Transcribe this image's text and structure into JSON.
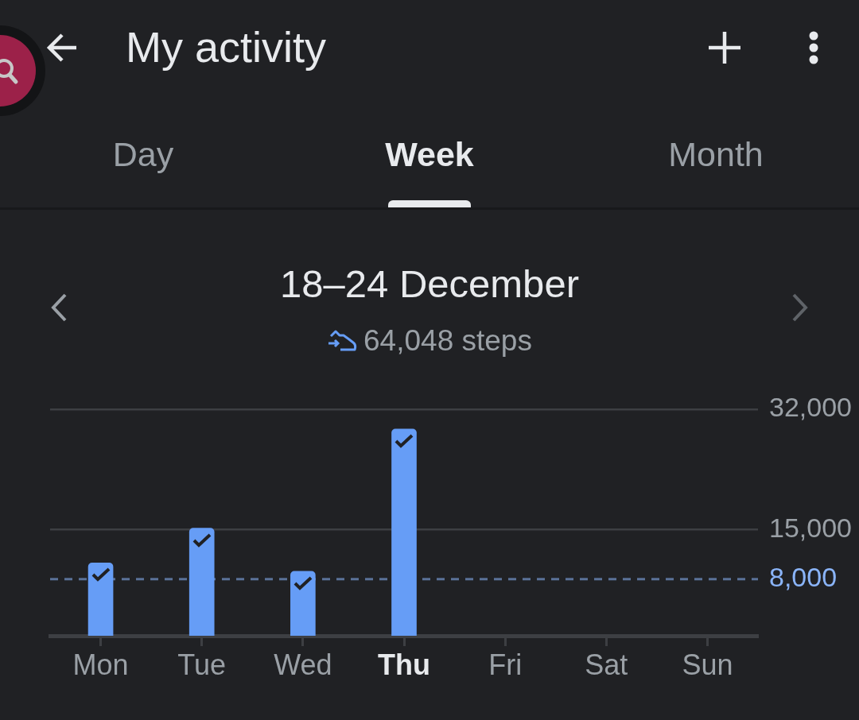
{
  "chart_data": {
    "type": "bar",
    "title": "18–24 December",
    "subtitle": "64,048 steps",
    "annotations": [
      "My activity",
      "Day",
      "Week",
      "Month"
    ],
    "categories": [
      "Mon",
      "Tue",
      "Wed",
      "Thu",
      "Fri",
      "Sat",
      "Sun"
    ],
    "values": [
      10300,
      15200,
      9100,
      29200,
      null,
      null,
      null
    ],
    "color": "#669df6",
    "ylim": [
      0,
      32000
    ],
    "yticks": [
      {
        "value": 15000,
        "label": "15,000"
      },
      {
        "value": 32000,
        "label": "32,000"
      }
    ],
    "grid": "y",
    "ref_lines": [
      {
        "axis": "y",
        "value": 8000,
        "label": "8,000",
        "color": "#8ab4f8",
        "line_style": "dashed"
      }
    ]
  }
}
